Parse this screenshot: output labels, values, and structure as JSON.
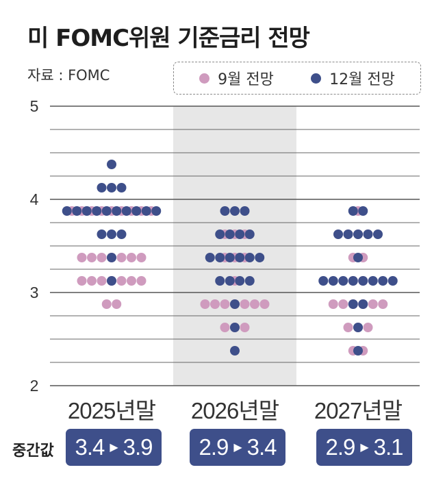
{
  "header": {
    "title": "미 FOMC위원 기준금리 전망",
    "source": "자료 : FOMC"
  },
  "legend": [
    {
      "label": "9월 전망",
      "color": "#cf9bbe"
    },
    {
      "label": "12월 전망",
      "color": "#3e4f8a"
    }
  ],
  "colors": {
    "sep": "#cf9bbe",
    "dec": "#3e4f8a",
    "shaded_panel": "#e7e7e7"
  },
  "median": {
    "label": "중간값",
    "arrow": "▶",
    "values": [
      {
        "from": "3.4",
        "to": "3.9"
      },
      {
        "from": "2.9",
        "to": "3.4"
      },
      {
        "from": "2.9",
        "to": "3.1"
      }
    ]
  },
  "chart_data": {
    "type": "scatter",
    "title": "미 FOMC위원 기준금리 전망",
    "categories": [
      "2025년말",
      "2026년말",
      "2027년말"
    ],
    "yticks": [
      "5",
      "4",
      "3",
      "2"
    ],
    "ylim": [
      2,
      5
    ],
    "grid": true,
    "legend_position": "top-right",
    "series": [
      {
        "name": "9월 전망",
        "points": [
          {
            "category": "2025년말",
            "y": 3.875,
            "count": 9
          },
          {
            "category": "2025년말",
            "y": 3.375,
            "count": 7
          },
          {
            "category": "2025년말",
            "y": 3.125,
            "count": 7
          },
          {
            "category": "2025년말",
            "y": 2.875,
            "count": 2
          },
          {
            "category": "2026년말",
            "y": 3.625,
            "count": 3
          },
          {
            "category": "2026년말",
            "y": 3.375,
            "count": 3
          },
          {
            "category": "2026년말",
            "y": 3.125,
            "count": 1
          },
          {
            "category": "2026년말",
            "y": 2.875,
            "count": 7
          },
          {
            "category": "2026년말",
            "y": 2.625,
            "count": 3
          },
          {
            "category": "2027년말",
            "y": 3.875,
            "count": 1
          },
          {
            "category": "2027년말",
            "y": 3.625,
            "count": 3
          },
          {
            "category": "2027년말",
            "y": 3.375,
            "count": 2
          },
          {
            "category": "2027년말",
            "y": 3.125,
            "count": 2
          },
          {
            "category": "2027년말",
            "y": 2.875,
            "count": 6
          },
          {
            "category": "2027년말",
            "y": 2.625,
            "count": 3
          },
          {
            "category": "2027년말",
            "y": 2.375,
            "count": 2
          }
        ]
      },
      {
        "name": "12월 전망",
        "points": [
          {
            "category": "2025년말",
            "y": 4.375,
            "count": 1
          },
          {
            "category": "2025년말",
            "y": 4.125,
            "count": 3
          },
          {
            "category": "2025년말",
            "y": 3.875,
            "count": 10
          },
          {
            "category": "2025년말",
            "y": 3.625,
            "count": 3
          },
          {
            "category": "2025년말",
            "y": 3.375,
            "count": 1
          },
          {
            "category": "2025년말",
            "y": 3.125,
            "count": 1
          },
          {
            "category": "2026년말",
            "y": 3.875,
            "count": 3
          },
          {
            "category": "2026년말",
            "y": 3.625,
            "count": 4
          },
          {
            "category": "2026년말",
            "y": 3.375,
            "count": 6
          },
          {
            "category": "2026년말",
            "y": 3.125,
            "count": 4
          },
          {
            "category": "2026년말",
            "y": 2.875,
            "count": 1
          },
          {
            "category": "2026년말",
            "y": 2.625,
            "count": 1
          },
          {
            "category": "2026년말",
            "y": 2.375,
            "count": 1
          },
          {
            "category": "2027년말",
            "y": 3.875,
            "count": 2
          },
          {
            "category": "2027년말",
            "y": 3.625,
            "count": 5
          },
          {
            "category": "2027년말",
            "y": 3.375,
            "count": 1
          },
          {
            "category": "2027년말",
            "y": 3.125,
            "count": 8
          },
          {
            "category": "2027년말",
            "y": 2.875,
            "count": 2
          },
          {
            "category": "2027년말",
            "y": 2.625,
            "count": 1
          },
          {
            "category": "2027년말",
            "y": 2.375,
            "count": 1
          }
        ]
      }
    ]
  }
}
